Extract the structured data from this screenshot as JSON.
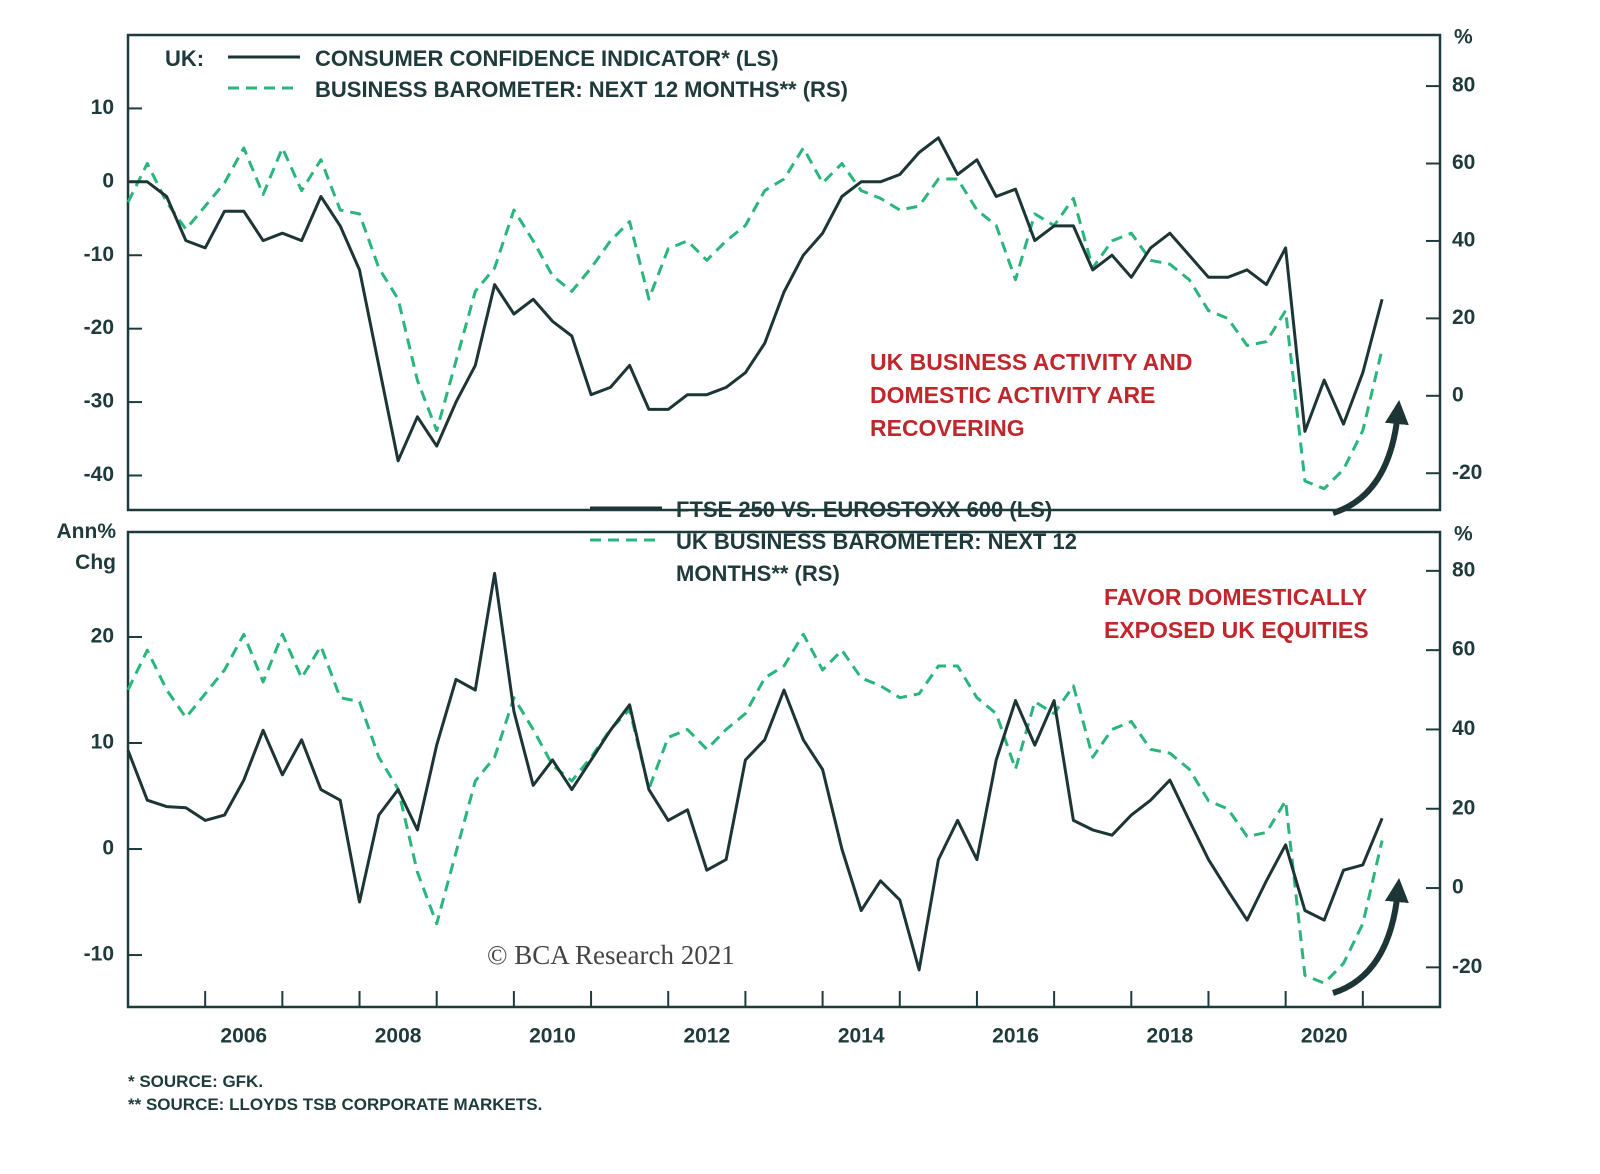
{
  "chart_data": [
    {
      "type": "line",
      "legend_prefix": "UK:",
      "x": [
        2005,
        2005.25,
        2005.5,
        2005.75,
        2006,
        2006.25,
        2006.5,
        2006.75,
        2007,
        2007.25,
        2007.5,
        2007.75,
        2008,
        2008.25,
        2008.5,
        2008.75,
        2009,
        2009.25,
        2009.5,
        2009.75,
        2010,
        2010.25,
        2010.5,
        2010.75,
        2011,
        2011.25,
        2011.5,
        2011.75,
        2012,
        2012.25,
        2012.5,
        2012.75,
        2013,
        2013.25,
        2013.5,
        2013.75,
        2014,
        2014.25,
        2014.5,
        2014.75,
        2015,
        2015.25,
        2015.5,
        2015.75,
        2016,
        2016.25,
        2016.5,
        2016.75,
        2017,
        2017.25,
        2017.5,
        2017.75,
        2018,
        2018.25,
        2018.5,
        2018.75,
        2019,
        2019.25,
        2019.5,
        2019.75,
        2020,
        2020.25,
        2020.5,
        2020.75,
        2021,
        2021.25
      ],
      "xlim": [
        2005,
        2022
      ],
      "ylim": [
        -44.7,
        20
      ],
      "yticks": [
        -40,
        -30,
        -20,
        -10,
        0,
        10
      ],
      "y2lim": [
        -29.5,
        93.2
      ],
      "y2ticks": [
        -20,
        0,
        20,
        40,
        60,
        80
      ],
      "y2_label": "%",
      "annotation": "UK BUSINESS ACTIVITY AND DOMESTIC ACTIVITY ARE RECOVERING",
      "series": [
        {
          "name": "CONSUMER CONFIDENCE INDICATOR* (LS)",
          "color": "#1d3535",
          "style": "solid",
          "values": [
            0,
            0,
            -2,
            -8,
            -9,
            -4,
            -4,
            -8,
            -7,
            -8,
            -2,
            -6,
            -12,
            -25,
            -38,
            -32,
            -36,
            -30,
            -25,
            -14,
            -18,
            -16,
            -19,
            -21,
            -29,
            -28,
            -25,
            -31,
            -31,
            -29,
            -29,
            -28,
            -26,
            -22,
            -15,
            -10,
            -7,
            -2,
            0,
            0,
            1,
            4,
            6,
            1,
            3,
            -2,
            -1,
            -8,
            -6,
            -6,
            -12,
            -10,
            -13,
            -9,
            -7,
            -10,
            -13,
            -13,
            -12,
            -14,
            -9,
            -34,
            -27,
            -33,
            -26,
            -16
          ]
        },
        {
          "name": "BUSINESS BAROMETER: NEXT 12 MONTHS** (RS)",
          "color": "#2ab57d",
          "style": "dashed",
          "axis": "y2",
          "values": [
            50,
            60,
            50,
            43,
            49,
            55,
            64,
            52,
            64,
            53,
            61,
            48,
            47,
            33,
            25,
            4,
            -9,
            9,
            27,
            33,
            48,
            40,
            31,
            27,
            33,
            40,
            45,
            25,
            38,
            40,
            35,
            40,
            44,
            53,
            56,
            64,
            55,
            60,
            53,
            51,
            48,
            49,
            56,
            56,
            48,
            44,
            30,
            47,
            44,
            51,
            33,
            40,
            42,
            35,
            34,
            30,
            22,
            20,
            13,
            14,
            22,
            -22,
            -24,
            -19,
            -9,
            12
          ]
        }
      ]
    },
    {
      "type": "line",
      "x": [
        2005,
        2005.25,
        2005.5,
        2005.75,
        2006,
        2006.25,
        2006.5,
        2006.75,
        2007,
        2007.25,
        2007.5,
        2007.75,
        2008,
        2008.25,
        2008.5,
        2008.75,
        2009,
        2009.25,
        2009.5,
        2009.75,
        2010,
        2010.25,
        2010.5,
        2010.75,
        2011,
        2011.25,
        2011.5,
        2011.75,
        2012,
        2012.25,
        2012.5,
        2012.75,
        2013,
        2013.25,
        2013.5,
        2013.75,
        2014,
        2014.25,
        2014.5,
        2014.75,
        2015,
        2015.25,
        2015.5,
        2015.75,
        2016,
        2016.25,
        2016.5,
        2016.75,
        2017,
        2017.25,
        2017.5,
        2017.75,
        2018,
        2018.25,
        2018.5,
        2018.75,
        2019,
        2019.25,
        2019.5,
        2019.75,
        2020,
        2020.25,
        2020.5,
        2020.75,
        2021,
        2021.25
      ],
      "xlim": [
        2005,
        2022
      ],
      "xticks": [
        {
          "value": 2006.5,
          "label": "2006"
        },
        {
          "value": 2008.5,
          "label": "2008"
        },
        {
          "value": 2010.5,
          "label": "2010"
        },
        {
          "value": 2012.5,
          "label": "2012"
        },
        {
          "value": 2014.5,
          "label": "2014"
        },
        {
          "value": 2016.5,
          "label": "2016"
        },
        {
          "value": 2018.5,
          "label": "2018"
        },
        {
          "value": 2020.5,
          "label": "2020"
        }
      ],
      "x_minor_ticks": [
        2006,
        2007,
        2008,
        2009,
        2010,
        2011,
        2012,
        2013,
        2014,
        2015,
        2016,
        2017,
        2018,
        2019,
        2020,
        2021
      ],
      "ylim": [
        -14.9,
        29.9
      ],
      "yticks": [
        -10,
        0,
        10,
        20
      ],
      "y_label": "Ann% Chg",
      "y2lim": [
        -30,
        89.8
      ],
      "y2ticks": [
        -20,
        0,
        20,
        40,
        60,
        80
      ],
      "y2_label": "%",
      "annotation": "FAVOR DOMESTICALLY EXPOSED UK EQUITIES",
      "watermark": "© BCA Research 2021",
      "series": [
        {
          "name": "FTSE 250 VS. EUROSTOXX 600 (LS)",
          "color": "#1d3535",
          "style": "solid",
          "values": [
            9.3,
            4.6,
            4,
            3.9,
            2.7,
            3.2,
            6.5,
            11.2,
            7,
            10.3,
            5.6,
            4.6,
            -5,
            3.2,
            5.6,
            1.8,
            9.8,
            16,
            15,
            26,
            13,
            6,
            8.4,
            5.6,
            8.4,
            11.2,
            13.6,
            5.6,
            2.7,
            3.7,
            -2,
            -1,
            8.4,
            10.3,
            15,
            10.3,
            7.5,
            0,
            -5.8,
            -3,
            -4.8,
            -11.4,
            -1,
            2.7,
            -1,
            8.4,
            14,
            9.8,
            14,
            2.7,
            1.8,
            1.3,
            3.2,
            4.6,
            6.5,
            2.7,
            -1,
            -3.9,
            -6.7,
            -3,
            0.4,
            -5.8,
            -6.7,
            -2,
            -1.5,
            2.9
          ]
        },
        {
          "name": "UK BUSINESS BAROMETER: NEXT 12 MONTHS** (RS)",
          "color": "#2ab57d",
          "style": "dashed",
          "axis": "y2",
          "values": [
            50,
            60,
            50,
            43,
            49,
            55,
            64,
            52,
            64,
            53,
            61,
            48,
            47,
            33,
            25,
            4,
            -9,
            9,
            27,
            33,
            48,
            40,
            31,
            27,
            33,
            40,
            45,
            25,
            38,
            40,
            35,
            40,
            44,
            53,
            56,
            64,
            55,
            60,
            53,
            51,
            48,
            49,
            56,
            56,
            48,
            44,
            30,
            47,
            44,
            51,
            33,
            40,
            42,
            35,
            34,
            30,
            22,
            20,
            13,
            14,
            22,
            -22,
            -24,
            -19,
            -9,
            12
          ]
        }
      ]
    }
  ],
  "footnotes": [
    "*  SOURCE: GFK.",
    "** SOURCE: LLOYDS TSB CORPORATE MARKETS."
  ]
}
